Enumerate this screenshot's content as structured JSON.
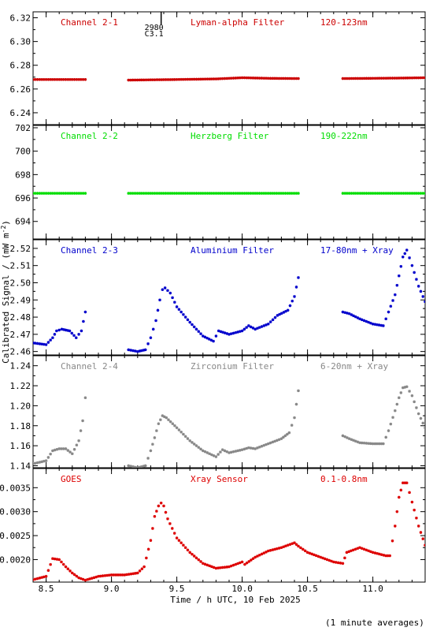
{
  "footer_note": "(1 minute averages)",
  "y_axis_label": "Calibrated Signal / (mW m",
  "y_axis_label_sup": "-2",
  "y_axis_label_end": ")",
  "x_axis_label": "Time / h UTC, 10 Feb 2025",
  "marker": {
    "line1": "2980",
    "line2": "C3.1",
    "x": 9.38
  },
  "x_range": [
    8.4,
    11.4
  ],
  "x_ticks": [
    8.5,
    9.0,
    9.5,
    10.0,
    10.5,
    11.0
  ],
  "x_tick_labels": [
    "8.5",
    "9.0",
    "9.5",
    "10.0",
    "10.5",
    "11.0"
  ],
  "panels": [
    {
      "id": "ch21",
      "channel": "Channel 2-1",
      "filter": "Lyman-alpha Filter",
      "band": "120-123nm",
      "color": "#cc0000",
      "ylim": [
        6.23,
        6.325
      ],
      "yticks": [
        6.24,
        6.26,
        6.28,
        6.3,
        6.32
      ],
      "ytick_labels": [
        "6.24",
        "6.26",
        "6.28",
        "6.30",
        "6.32"
      ]
    },
    {
      "id": "ch22",
      "channel": "Channel 2-2",
      "filter": "Herzberg Filter",
      "band": "190-222nm",
      "color": "#00dd00",
      "ylim": [
        692.5,
        702.2
      ],
      "yticks": [
        694,
        696,
        698,
        700,
        702
      ],
      "ytick_labels": [
        "694",
        "696",
        "698",
        "700",
        "702"
      ]
    },
    {
      "id": "ch23",
      "channel": "Channel 2-3",
      "filter": "Aluminium Filter",
      "band": "17-80nm + Xray",
      "color": "#0000cc",
      "ylim": [
        2.458,
        2.525
      ],
      "yticks": [
        2.46,
        2.47,
        2.48,
        2.49,
        2.5,
        2.51,
        2.52
      ],
      "ytick_labels": [
        "2.46",
        "2.47",
        "2.48",
        "2.49",
        "2.50",
        "2.51",
        "2.52"
      ]
    },
    {
      "id": "ch24",
      "channel": "Channel 2-4",
      "filter": "Zirconium Filter",
      "band": "6-20nm + Xray",
      "color": "#888888",
      "ylim": [
        1.138,
        1.25
      ],
      "yticks": [
        1.14,
        1.16,
        1.18,
        1.2,
        1.22,
        1.24
      ],
      "ytick_labels": [
        "1.14",
        "1.16",
        "1.18",
        "1.20",
        "1.22",
        "1.24"
      ]
    },
    {
      "id": "goes",
      "channel": "GOES",
      "filter": "Xray Sensor",
      "band": "0.1-0.8nm",
      "color": "#dd0000",
      "ylim": [
        0.00153,
        0.0039
      ],
      "yticks": [
        0.002,
        0.0025,
        0.003,
        0.0035
      ],
      "ytick_labels": [
        "0.0020",
        "0.0025",
        "0.0030",
        "0.0035"
      ]
    }
  ],
  "chart_data": [
    {
      "type": "scatter",
      "name": "Channel 2-1",
      "series": [
        {
          "x": [
            8.4,
            8.8
          ],
          "y": [
            6.268,
            6.268
          ],
          "segment": true
        },
        {
          "x": [
            9.13,
            9.5,
            9.8,
            10.0,
            10.2,
            10.43
          ],
          "y": [
            6.2675,
            6.268,
            6.2685,
            6.2695,
            6.269,
            6.2688
          ],
          "segment": true
        },
        {
          "x": [
            10.77,
            11.0,
            11.2,
            11.4
          ],
          "y": [
            6.2688,
            6.269,
            6.2692,
            6.2695
          ],
          "segment": true
        }
      ]
    },
    {
      "type": "scatter",
      "name": "Channel 2-2",
      "series": [
        {
          "x": [
            8.4,
            8.8
          ],
          "y": [
            696.4,
            696.4
          ],
          "segment": true
        },
        {
          "x": [
            9.13,
            9.6,
            10.0,
            10.43
          ],
          "y": [
            696.4,
            696.4,
            696.4,
            696.4
          ],
          "segment": true
        },
        {
          "x": [
            10.77,
            11.1,
            11.4
          ],
          "y": [
            696.4,
            696.4,
            696.4
          ],
          "segment": true
        }
      ]
    },
    {
      "type": "scatter",
      "name": "Channel 2-3",
      "series": [
        {
          "x": [
            8.4,
            8.5,
            8.55,
            8.58,
            8.62,
            8.68,
            8.73,
            8.77,
            8.8
          ],
          "y": [
            2.465,
            2.464,
            2.468,
            2.472,
            2.473,
            2.472,
            2.468,
            2.472,
            2.483
          ],
          "segment": true
        },
        {
          "x": [
            9.13,
            9.2,
            9.26,
            9.3,
            9.34,
            9.37,
            9.39,
            9.41,
            9.45,
            9.5,
            9.6,
            9.7,
            9.78,
            9.82,
            9.9,
            10.0,
            10.05,
            10.1,
            10.2,
            10.27,
            10.35,
            10.4,
            10.43
          ],
          "y": [
            2.461,
            2.46,
            2.461,
            2.468,
            2.478,
            2.49,
            2.496,
            2.497,
            2.494,
            2.486,
            2.477,
            2.469,
            2.466,
            2.472,
            2.47,
            2.472,
            2.475,
            2.473,
            2.476,
            2.481,
            2.484,
            2.492,
            2.503
          ],
          "segment": true
        },
        {
          "x": [
            10.77,
            10.82,
            10.9,
            11.0,
            11.08,
            11.12,
            11.17,
            11.2,
            11.23,
            11.26,
            11.3,
            11.35,
            11.4
          ],
          "y": [
            2.483,
            2.482,
            2.479,
            2.476,
            2.475,
            2.483,
            2.493,
            2.504,
            2.515,
            2.519,
            2.51,
            2.498,
            2.489
          ],
          "segment": true
        }
      ]
    },
    {
      "type": "scatter",
      "name": "Channel 2-4",
      "series": [
        {
          "x": [
            8.4,
            8.5,
            8.55,
            8.6,
            8.65,
            8.7,
            8.75,
            8.78,
            8.8
          ],
          "y": [
            1.142,
            1.145,
            1.155,
            1.157,
            1.157,
            1.152,
            1.165,
            1.185,
            1.208
          ],
          "segment": true
        },
        {
          "x": [
            9.13,
            9.2,
            9.26,
            9.3,
            9.33,
            9.36,
            9.39,
            9.42,
            9.5,
            9.6,
            9.7,
            9.8,
            9.85,
            9.9,
            10.0,
            10.05,
            10.1,
            10.2,
            10.3,
            10.36,
            10.4,
            10.43
          ],
          "y": [
            1.14,
            1.138,
            1.14,
            1.155,
            1.168,
            1.182,
            1.19,
            1.188,
            1.178,
            1.165,
            1.155,
            1.149,
            1.156,
            1.153,
            1.156,
            1.158,
            1.157,
            1.162,
            1.167,
            1.173,
            1.188,
            1.215
          ],
          "segment": true
        },
        {
          "x": [
            10.77,
            10.82,
            10.9,
            11.0,
            11.08,
            11.12,
            11.17,
            11.2,
            11.23,
            11.26,
            11.3,
            11.35,
            11.4
          ],
          "y": [
            1.17,
            1.167,
            1.163,
            1.162,
            1.162,
            1.175,
            1.195,
            1.208,
            1.218,
            1.219,
            1.21,
            1.192,
            1.178
          ],
          "segment": true
        }
      ]
    },
    {
      "type": "scatter",
      "name": "GOES",
      "series": [
        {
          "x": [
            8.4,
            8.5,
            8.55,
            8.6,
            8.65,
            8.7,
            8.75,
            8.8,
            8.9,
            9.0,
            9.1,
            9.2,
            9.25,
            9.3,
            9.33,
            9.36,
            9.38,
            9.4,
            9.43,
            9.5,
            9.6,
            9.7,
            9.8,
            9.9,
            10.0,
            10.02,
            10.1,
            10.2,
            10.3,
            10.35,
            10.4,
            10.43,
            10.5,
            10.6,
            10.7,
            10.77,
            10.8,
            10.9,
            11.0,
            11.1,
            11.13,
            11.17,
            11.2,
            11.23,
            11.26,
            11.3,
            11.35,
            11.4
          ],
          "y": [
            0.00158,
            0.00165,
            0.00202,
            0.002,
            0.00185,
            0.00172,
            0.00162,
            0.00157,
            0.00165,
            0.00168,
            0.00168,
            0.00172,
            0.00185,
            0.0024,
            0.0029,
            0.00312,
            0.00318,
            0.00312,
            0.00285,
            0.00245,
            0.00215,
            0.00192,
            0.00182,
            0.00185,
            0.00195,
            0.0019,
            0.00205,
            0.00218,
            0.00225,
            0.0023,
            0.00235,
            0.00228,
            0.00215,
            0.00205,
            0.00195,
            0.00192,
            0.00215,
            0.00225,
            0.00215,
            0.00208,
            0.00208,
            0.0027,
            0.0033,
            0.0036,
            0.0036,
            0.0032,
            0.0027,
            0.0023
          ],
          "segment": true
        }
      ]
    }
  ]
}
